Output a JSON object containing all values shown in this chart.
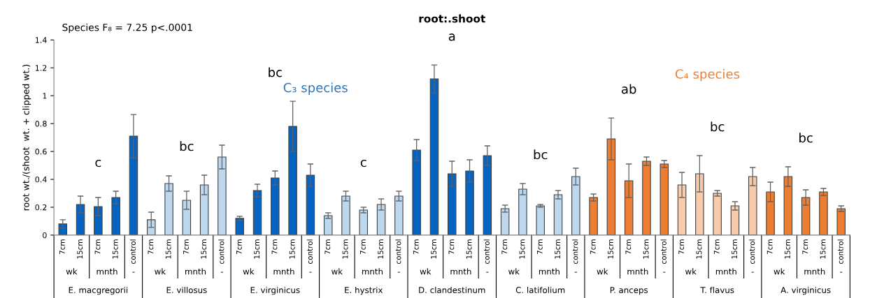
{
  "chart_data": {
    "type": "bar",
    "title": "root:.shoot",
    "ylabel": "root wt./(shoot  wt. + clipped wt.)",
    "categories": [
      "7cm",
      "15cm",
      "7cm",
      "15cm",
      "control",
      "7cm",
      "15cm",
      "7cm",
      "15cm",
      "control",
      "7cm",
      "15cm",
      "7cm",
      "15cm",
      "control",
      "7cm",
      "15cm",
      "7cm",
      "15cm",
      "control",
      "7cm",
      "15cm",
      "7cm",
      "15cm",
      "control",
      "7cm",
      "15cm",
      "7cm",
      "15cm",
      "control",
      "7cm",
      "15cm",
      "7cm",
      "15cm",
      "control",
      "7cm",
      "15cm",
      "7cm",
      "15cm",
      "control",
      "7cm",
      "15cm",
      "7cm",
      "15cm",
      "control"
    ],
    "values": [
      0.08,
      0.22,
      0.205,
      0.27,
      0.71,
      0.11,
      0.37,
      0.25,
      0.36,
      0.56,
      0.12,
      0.32,
      0.41,
      0.78,
      0.43,
      0.14,
      0.28,
      0.18,
      0.22,
      0.28,
      0.61,
      1.12,
      0.44,
      0.46,
      0.57,
      0.19,
      0.33,
      0.21,
      0.29,
      0.42,
      0.27,
      0.69,
      0.39,
      0.53,
      0.51,
      0.36,
      0.44,
      0.3,
      0.21,
      0.42,
      0.31,
      0.42,
      0.27,
      0.31,
      0.19
    ],
    "errors": [
      0.03,
      0.06,
      0.065,
      0.045,
      0.155,
      0.055,
      0.055,
      0.065,
      0.07,
      0.085,
      0.015,
      0.045,
      0.05,
      0.18,
      0.08,
      0.02,
      0.035,
      0.02,
      0.04,
      0.035,
      0.075,
      0.1,
      0.09,
      0.08,
      0.07,
      0.025,
      0.04,
      0.01,
      0.03,
      0.06,
      0.025,
      0.15,
      0.12,
      0.03,
      0.025,
      0.09,
      0.13,
      0.02,
      0.03,
      0.065,
      0.07,
      0.07,
      0.055,
      0.025,
      0.02
    ],
    "colors": [
      "#0563c1",
      "#0563c1",
      "#0563c1",
      "#0563c1",
      "#0563c1",
      "#bdd7ee",
      "#bdd7ee",
      "#bdd7ee",
      "#bdd7ee",
      "#bdd7ee",
      "#0563c1",
      "#0563c1",
      "#0563c1",
      "#0563c1",
      "#0563c1",
      "#bdd7ee",
      "#bdd7ee",
      "#bdd7ee",
      "#bdd7ee",
      "#bdd7ee",
      "#0563c1",
      "#0563c1",
      "#0563c1",
      "#0563c1",
      "#0563c1",
      "#bdd7ee",
      "#bdd7ee",
      "#bdd7ee",
      "#bdd7ee",
      "#bdd7ee",
      "#ed7d31",
      "#ed7d31",
      "#ed7d31",
      "#ed7d31",
      "#ed7d31",
      "#f8cbad",
      "#f8cbad",
      "#f8cbad",
      "#f8cbad",
      "#f8cbad",
      "#ed7d31",
      "#ed7d31",
      "#ed7d31",
      "#ed7d31",
      "#ed7d31"
    ],
    "ylim": [
      0,
      1.4
    ],
    "yticks": [
      0,
      0.2,
      0.4,
      0.6,
      0.8,
      1,
      1.2,
      1.4
    ],
    "grid": false,
    "legend": false,
    "annotations": [
      "Species F₈ = 7.25 p<.0001",
      "C₃ species",
      "C₄ species",
      "c",
      "bc",
      "bc",
      "c",
      "a",
      "bc",
      "ab",
      "bc",
      "bc",
      "wk",
      "mnth",
      "-",
      "wk",
      "mnth",
      "-",
      "wk",
      "mnth",
      "-",
      "wk",
      "mnth",
      "-",
      "wk",
      "mnth",
      "-",
      "wk",
      "mnth",
      "-",
      "wk",
      "mnth",
      "-",
      "wk",
      "mnth",
      "-",
      "wk",
      "mnth",
      "-",
      "E. macgregorii",
      "E. villosus",
      "E. virginicus",
      "E. hystrix",
      "D. clandestinum",
      "C. latifolium",
      "P. anceps",
      "T. flavus",
      "A. virginicus"
    ]
  }
}
